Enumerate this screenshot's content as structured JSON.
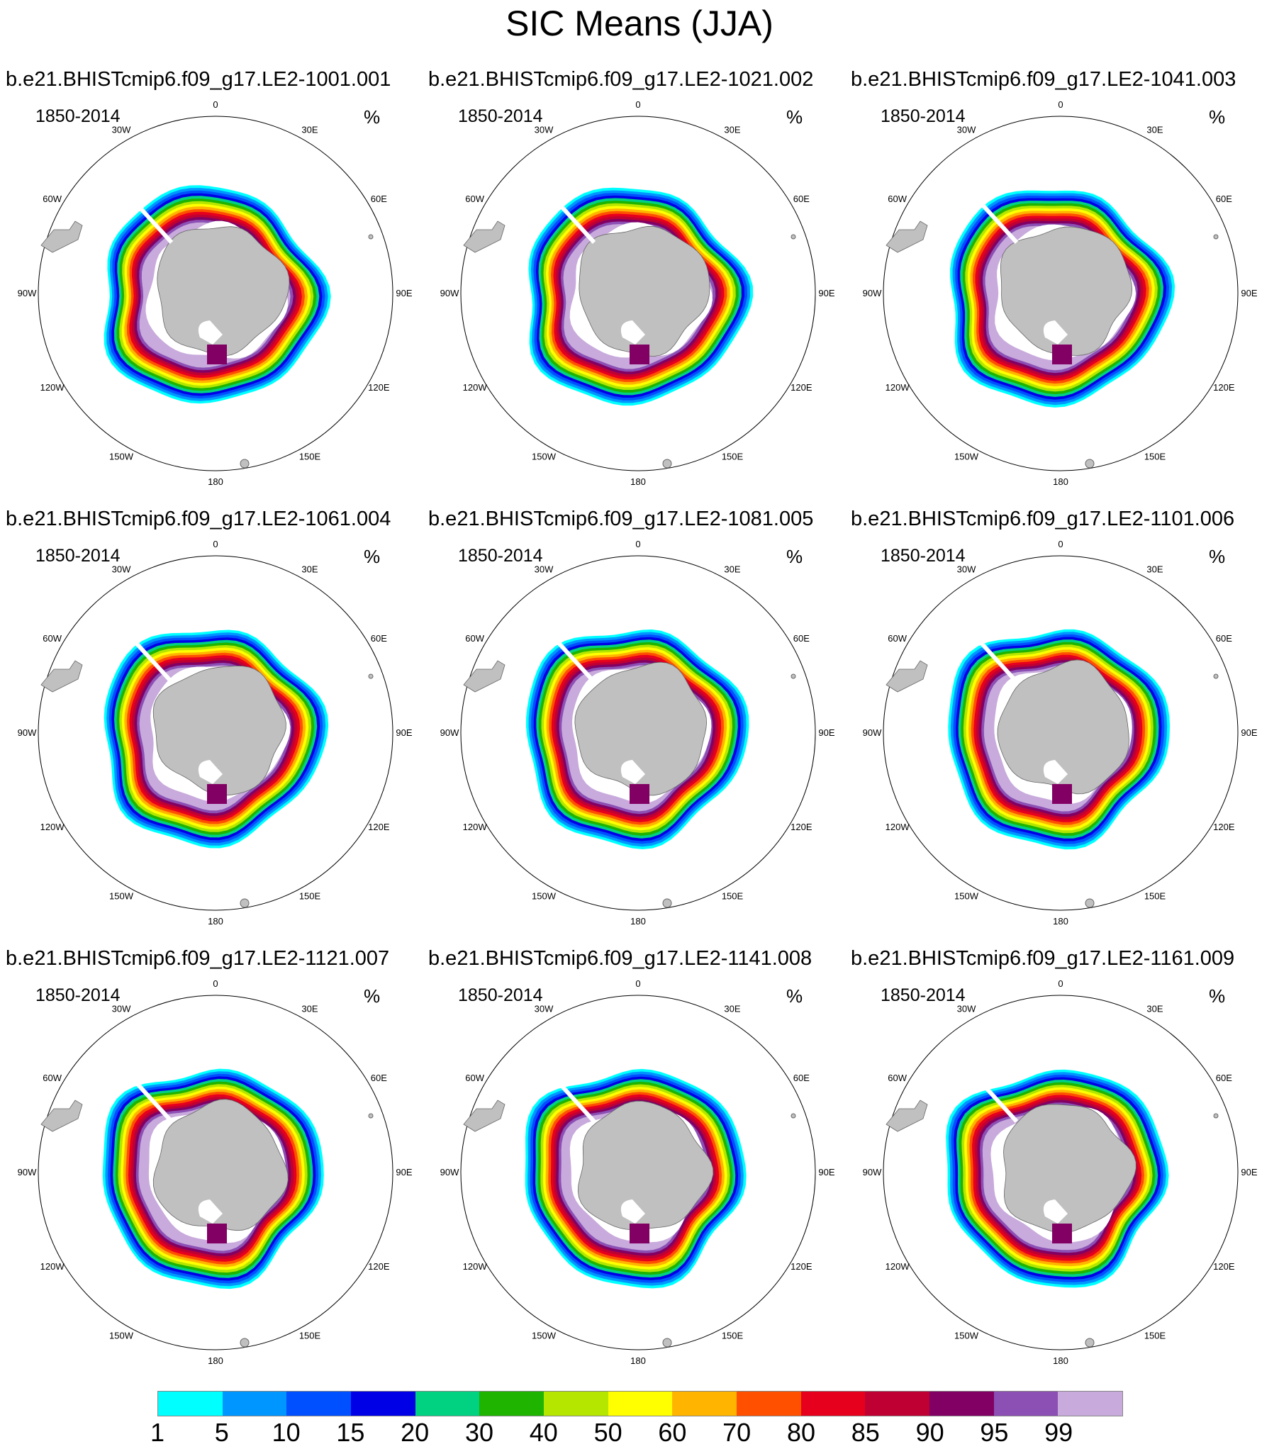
{
  "title": "SIC Means (JJA)",
  "panels": [
    {
      "run": "b.e21.BHISTcmip6.f09_g17.LE2-1001.001",
      "period": "1850-2014",
      "units": "%"
    },
    {
      "run": "b.e21.BHISTcmip6.f09_g17.LE2-1021.002",
      "period": "1850-2014",
      "units": "%"
    },
    {
      "run": "b.e21.BHISTcmip6.f09_g17.LE2-1041.003",
      "period": "1850-2014",
      "units": "%"
    },
    {
      "run": "b.e21.BHISTcmip6.f09_g17.LE2-1061.004",
      "period": "1850-2014",
      "units": "%"
    },
    {
      "run": "b.e21.BHISTcmip6.f09_g17.LE2-1081.005",
      "period": "1850-2014",
      "units": "%"
    },
    {
      "run": "b.e21.BHISTcmip6.f09_g17.LE2-1101.006",
      "period": "1850-2014",
      "units": "%"
    },
    {
      "run": "b.e21.BHISTcmip6.f09_g17.LE2-1121.007",
      "period": "1850-2014",
      "units": "%"
    },
    {
      "run": "b.e21.BHISTcmip6.f09_g17.LE2-1141.008",
      "period": "1850-2014",
      "units": "%"
    },
    {
      "run": "b.e21.BHISTcmip6.f09_g17.LE2-1161.009",
      "period": "1850-2014",
      "units": "%"
    }
  ],
  "longitude_labels": [
    "0",
    "30E",
    "60E",
    "90E",
    "120E",
    "150E",
    "180",
    "150W",
    "120W",
    "90W",
    "60W",
    "30W"
  ],
  "colorbar": {
    "levels": [
      "1",
      "5",
      "10",
      "15",
      "20",
      "30",
      "40",
      "50",
      "60",
      "70",
      "80",
      "85",
      "90",
      "95",
      "99"
    ],
    "colors": [
      "#00ffff",
      "#0096ff",
      "#0050ff",
      "#0000e6",
      "#00d282",
      "#1eb400",
      "#b4e600",
      "#ffff00",
      "#ffb400",
      "#ff5000",
      "#e6001e",
      "#be0032",
      "#820064",
      "#8c50b4",
      "#c8aadc"
    ]
  },
  "map_colors": {
    "land": "#c0c0c0",
    "coast_white": "#ffffff",
    "bands_outer_to_inner": [
      "#00ffff",
      "#0096ff",
      "#0050ff",
      "#0000e6",
      "#00d282",
      "#1eb400",
      "#b4e600",
      "#ffff00",
      "#ffb400",
      "#ff5000",
      "#e6001e",
      "#be0032",
      "#820064",
      "#8c50b4",
      "#c8aadc"
    ]
  }
}
